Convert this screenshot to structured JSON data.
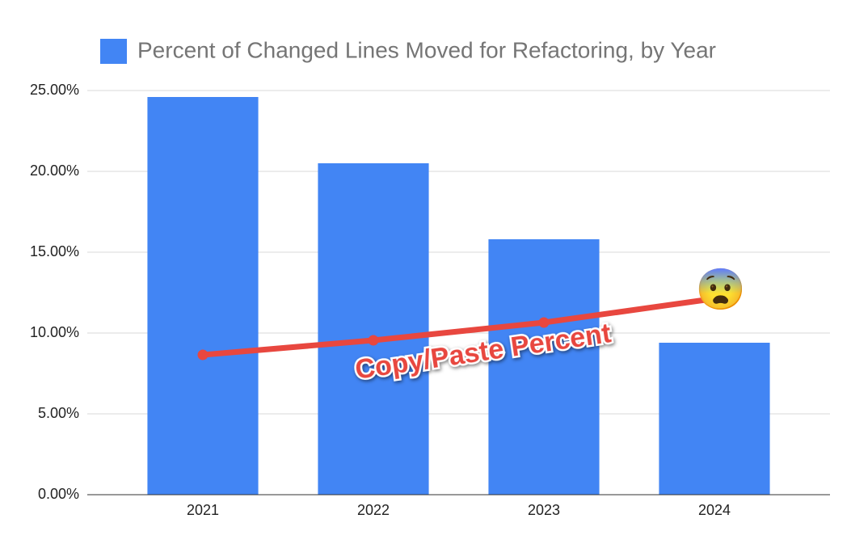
{
  "chart_data": {
    "type": "bar",
    "categories": [
      "2021",
      "2022",
      "2023",
      "2024"
    ],
    "series": [
      {
        "name": "Percent of Changed Lines Moved for Refactoring, by Year",
        "type": "bar",
        "color": "#4285f4",
        "values": [
          24.6,
          20.5,
          15.8,
          9.4
        ]
      },
      {
        "name": "Copy/Paste Percent",
        "type": "line",
        "color": "#e8473f",
        "values": [
          8.65,
          9.55,
          10.65,
          12.1
        ]
      }
    ],
    "annotation": "😨",
    "ylim": [
      0,
      25
    ],
    "yticks": [
      {
        "value": 0,
        "label": "0.00%"
      },
      {
        "value": 5,
        "label": "5.00%"
      },
      {
        "value": 10,
        "label": "10.00%"
      },
      {
        "value": 15,
        "label": "15.00%"
      },
      {
        "value": 20,
        "label": "20.00%"
      },
      {
        "value": 25,
        "label": "25.00%"
      }
    ],
    "grid": true
  }
}
